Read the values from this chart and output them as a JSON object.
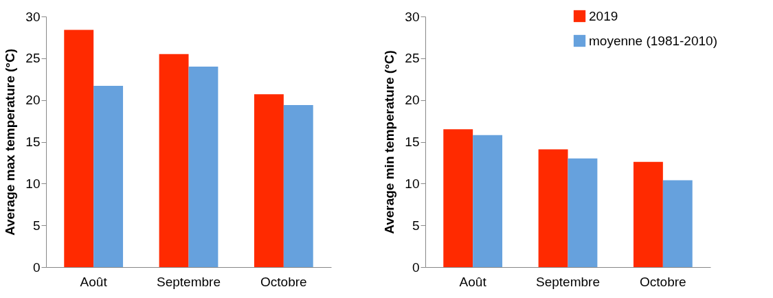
{
  "chart_data": [
    {
      "type": "bar",
      "ylabel": "Average max temperature (°C)",
      "categories": [
        "Août",
        "Septembre",
        "Octobre"
      ],
      "ylim": [
        0,
        30
      ],
      "yticks": [
        0,
        5,
        10,
        15,
        20,
        25,
        30
      ],
      "grid": false,
      "legend": false,
      "series": [
        {
          "color": "#ff2a00",
          "values": [
            28.4,
            25.5,
            20.7
          ]
        },
        {
          "color": "#66a1dd",
          "values": [
            21.7,
            24.0,
            19.4
          ]
        }
      ]
    },
    {
      "type": "bar",
      "ylabel": "Average min temperature (°C)",
      "categories": [
        "Août",
        "Septembre",
        "Octobre"
      ],
      "ylim": [
        0,
        30
      ],
      "yticks": [
        0,
        5,
        10,
        15,
        20,
        25,
        30
      ],
      "grid": false,
      "legend": "top right",
      "series": [
        {
          "name": "2019",
          "color": "#ff2a00",
          "values": [
            16.5,
            14.1,
            12.6
          ]
        },
        {
          "name": "moyenne (1981-2010)",
          "color": "#66a1dd",
          "values": [
            15.8,
            13.0,
            10.4
          ]
        }
      ]
    }
  ]
}
